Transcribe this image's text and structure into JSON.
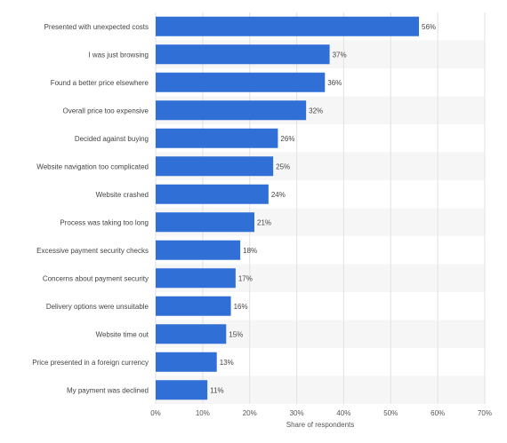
{
  "chart_data": {
    "type": "bar",
    "orientation": "horizontal",
    "categories": [
      "Presented with unexpected costs",
      "I was just browsing",
      "Found a better price elsewhere",
      "Overall price too expensive",
      "Decided against buying",
      "Website navigation too complicated",
      "Website crashed",
      "Process was taking too long",
      "Excessive payment security checks",
      "Concerns about payment security",
      "Delivery options were unsuitable",
      "Website time out",
      "Price presented in a foreign currency",
      "My payment was declined"
    ],
    "values": [
      56,
      37,
      36,
      32,
      26,
      25,
      24,
      21,
      18,
      17,
      16,
      15,
      13,
      11
    ],
    "value_labels": [
      "56%",
      "37%",
      "36%",
      "32%",
      "26%",
      "25%",
      "24%",
      "21%",
      "18%",
      "17%",
      "16%",
      "15%",
      "13%",
      "11%"
    ],
    "xlabel": "Share of respondents",
    "ylabel": "",
    "xlim": [
      0,
      70
    ],
    "xticks": [
      0,
      10,
      20,
      30,
      40,
      50,
      60,
      70
    ],
    "xtick_labels": [
      "0%",
      "10%",
      "20%",
      "30%",
      "40%",
      "50%",
      "60%",
      "70%"
    ],
    "grid": true,
    "colors": {
      "bar": "#2f6fd6",
      "band": "#f6f6f6",
      "grid": "#e2e2e2",
      "text": "#444444"
    }
  }
}
